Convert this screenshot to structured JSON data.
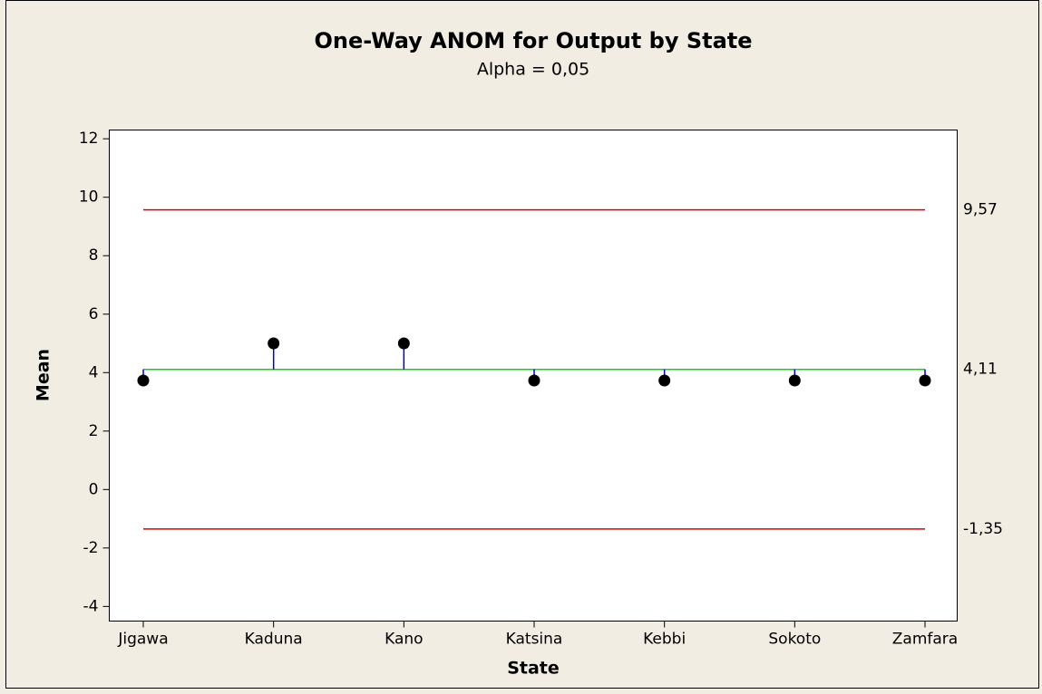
{
  "chart_data": {
    "type": "anom",
    "title": "One-Way ANOM for Output by State",
    "subtitle": "Alpha = 0,05",
    "xlabel": "State",
    "ylabel": "Mean",
    "categories": [
      "Jigawa",
      "Kaduna",
      "Kano",
      "Katsina",
      "Kebbi",
      "Sokoto",
      "Zamfara"
    ],
    "values": [
      3.73,
      5.0,
      5.0,
      3.73,
      3.73,
      3.73,
      3.73
    ],
    "color": "#000000",
    "stem_color": "#0000cc",
    "center_line": {
      "value": 4.11,
      "label": "4,11",
      "color": "#00dd00"
    },
    "limit_lines": [
      {
        "value": 9.57,
        "label": "9,57",
        "color": "#dd0000"
      },
      {
        "value": -1.35,
        "label": "-1,35",
        "color": "#dd0000"
      }
    ],
    "ylim": [
      -4.5,
      12.3
    ],
    "yticks": [
      -4,
      -2,
      0,
      2,
      4,
      6,
      8,
      10,
      12
    ]
  }
}
